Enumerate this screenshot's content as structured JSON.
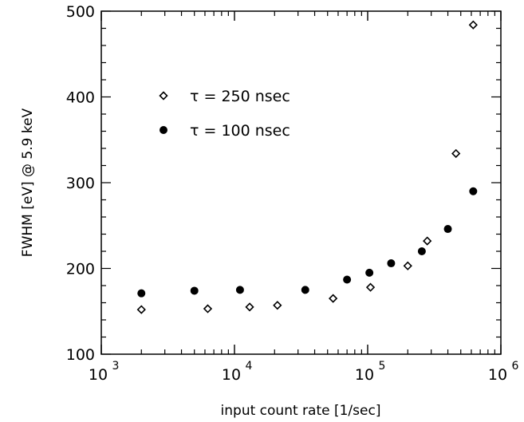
{
  "chart_data": {
    "type": "scatter",
    "xlabel": "input count rate [1/sec]",
    "ylabel": "FWHM [eV] @ 5.9 keV",
    "xscale": "log",
    "xlim": [
      1000,
      1000000
    ],
    "ylim": [
      100,
      500
    ],
    "x_ticks": [
      1000,
      10000,
      100000,
      1000000
    ],
    "x_tick_labels": [
      {
        "base": "10",
        "exp": "3"
      },
      {
        "base": "10",
        "exp": "4"
      },
      {
        "base": "10",
        "exp": "5"
      },
      {
        "base": "10",
        "exp": "6"
      }
    ],
    "y_ticks": [
      100,
      200,
      300,
      400,
      500
    ],
    "y_tick_labels": [
      "100",
      "200",
      "300",
      "400",
      "500"
    ],
    "grid": false,
    "legend_position": "upper-left",
    "series": [
      {
        "name": "τ = 250 nsec",
        "marker": "open-diamond",
        "x": [
          2000,
          6300,
          13000,
          21000,
          55000,
          105000,
          200000,
          280000,
          460000,
          620000
        ],
        "y": [
          152,
          153,
          155,
          157,
          165,
          178,
          203,
          232,
          334,
          484
        ]
      },
      {
        "name": "τ = 100 nsec",
        "marker": "filled-circle",
        "x": [
          2000,
          5000,
          11000,
          34000,
          70000,
          103000,
          150000,
          255000,
          400000,
          620000
        ],
        "y": [
          171,
          174,
          175,
          175,
          187,
          195,
          206,
          220,
          246,
          290
        ]
      }
    ]
  }
}
